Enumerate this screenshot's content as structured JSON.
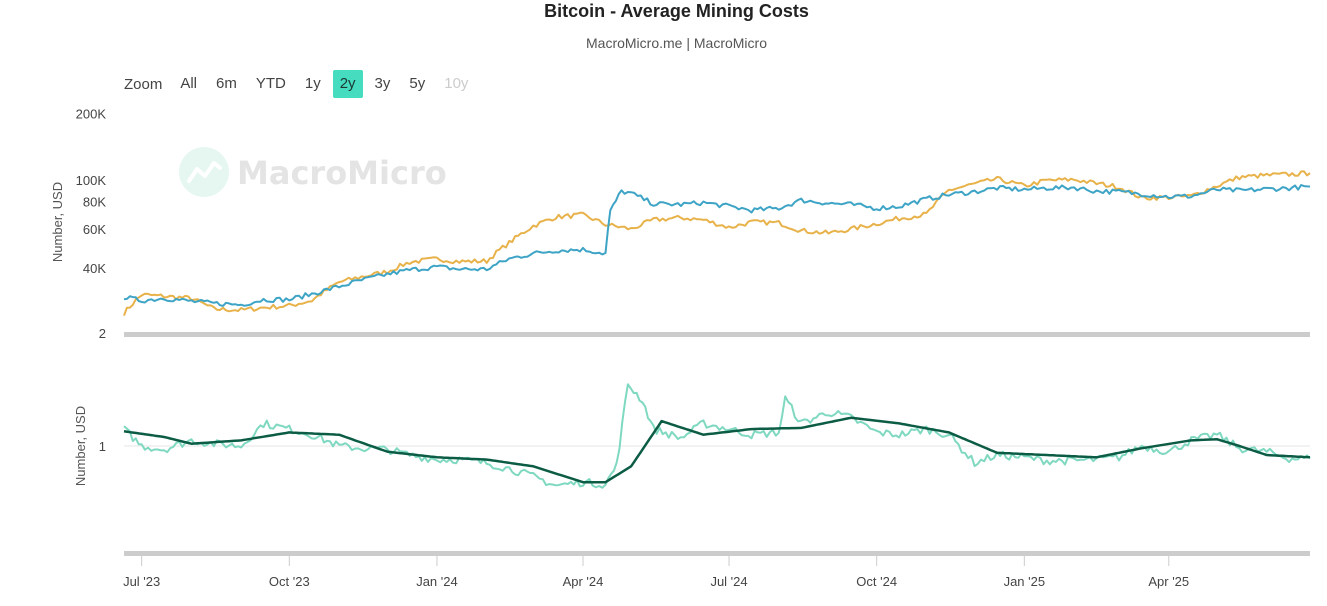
{
  "title": "Bitcoin - Average Mining Costs",
  "subtitle": "MacroMicro.me | MacroMicro",
  "zoom": {
    "label": "Zoom",
    "buttons": [
      "All",
      "6m",
      "YTD",
      "1y",
      "2y",
      "3y",
      "5y",
      "10y"
    ],
    "active": "2y",
    "disabled": [
      "10y"
    ]
  },
  "watermark": {
    "text": "MacroMicro",
    "icon": "chart-logo-icon"
  },
  "colors": {
    "price": "#e8b24a",
    "cost": "#3ea4c6",
    "ratio": "#7fd8c0",
    "ratio_avg": "#0c5c45",
    "grid": "#e6e6e6",
    "navigator": "#cccccc",
    "zoom_active": "#45dcc0"
  },
  "chart_data": [
    {
      "type": "line",
      "scale": "log",
      "ylabel": "Number, USD",
      "y_ticks": [
        "200K",
        "100K",
        "80K",
        "60K",
        "40K"
      ],
      "ylim": [
        18000,
        200000
      ],
      "series": [
        {
          "color": "#e8b24a",
          "x": [
            "2023-06-20",
            "2023-07-01",
            "2023-07-15",
            "2023-08-01",
            "2023-08-15",
            "2023-09-01",
            "2023-09-15",
            "2023-10-01",
            "2023-10-15",
            "2023-11-01",
            "2023-11-15",
            "2023-12-01",
            "2023-12-15",
            "2024-01-01",
            "2024-01-15",
            "2024-02-01",
            "2024-02-15",
            "2024-03-01",
            "2024-03-15",
            "2024-04-01",
            "2024-04-15",
            "2024-05-01",
            "2024-05-15",
            "2024-06-01",
            "2024-06-15",
            "2024-07-01",
            "2024-07-15",
            "2024-08-01",
            "2024-08-15",
            "2024-09-01",
            "2024-09-15",
            "2024-10-01",
            "2024-10-15",
            "2024-11-01",
            "2024-11-15",
            "2024-12-01",
            "2024-12-15",
            "2025-01-01",
            "2025-01-15",
            "2025-02-01",
            "2025-02-15",
            "2025-03-01",
            "2025-03-15",
            "2025-04-01",
            "2025-04-15",
            "2025-05-01",
            "2025-05-15",
            "2025-06-01",
            "2025-06-15",
            "2025-06-28"
          ],
          "y": [
            25000,
            30300,
            29800,
            29200,
            26100,
            25800,
            26500,
            27000,
            28500,
            34500,
            36500,
            38500,
            42500,
            44000,
            42800,
            43000,
            52000,
            62000,
            68000,
            69500,
            63000,
            60000,
            66000,
            67500,
            66000,
            61000,
            64500,
            64000,
            59000,
            57500,
            60000,
            63500,
            67000,
            70000,
            90000,
            96000,
            101000,
            94000,
            99500,
            100500,
            96500,
            93000,
            83000,
            83500,
            84500,
            94000,
            103000,
            105000,
            106000,
            107500
          ]
        },
        {
          "color": "#3ea4c6",
          "x": [
            "2023-06-20",
            "2023-07-01",
            "2023-07-15",
            "2023-08-01",
            "2023-08-15",
            "2023-09-01",
            "2023-09-15",
            "2023-10-01",
            "2023-10-15",
            "2023-11-01",
            "2023-11-15",
            "2023-12-01",
            "2023-12-15",
            "2024-01-01",
            "2024-01-15",
            "2024-02-01",
            "2024-02-15",
            "2024-03-01",
            "2024-03-15",
            "2024-04-01",
            "2024-04-15",
            "2024-04-18",
            "2024-04-25",
            "2024-05-01",
            "2024-05-15",
            "2024-06-01",
            "2024-06-15",
            "2024-07-01",
            "2024-07-15",
            "2024-08-01",
            "2024-08-15",
            "2024-09-01",
            "2024-09-15",
            "2024-10-01",
            "2024-10-15",
            "2024-11-01",
            "2024-11-15",
            "2024-12-01",
            "2024-12-15",
            "2025-01-01",
            "2025-01-15",
            "2025-02-01",
            "2025-02-15",
            "2025-03-01",
            "2025-03-15",
            "2025-04-01",
            "2025-04-15",
            "2025-05-01",
            "2025-05-15",
            "2025-06-01",
            "2025-06-15",
            "2025-06-28"
          ],
          "y": [
            29500,
            28500,
            29200,
            28300,
            27700,
            27300,
            28800,
            28800,
            30500,
            33000,
            35200,
            37500,
            39200,
            40500,
            39500,
            39500,
            44000,
            46500,
            48000,
            48500,
            46500,
            72000,
            89000,
            87000,
            78000,
            77500,
            79000,
            76000,
            73000,
            74500,
            81000,
            78500,
            77500,
            74500,
            76000,
            82000,
            86000,
            88500,
            92000,
            90500,
            92000,
            92500,
            89000,
            88500,
            86500,
            84000,
            84500,
            90500,
            89500,
            91000,
            92000,
            93500
          ]
        }
      ]
    },
    {
      "type": "line",
      "ylabel": "Number, USD",
      "y_ticks": [
        "2",
        "1"
      ],
      "ylim": [
        0.2,
        2.0
      ],
      "series": [
        {
          "color": "#7fd8c0",
          "x": [
            "2023-06-20",
            "2023-07-01",
            "2023-07-15",
            "2023-08-01",
            "2023-08-15",
            "2023-09-01",
            "2023-09-15",
            "2023-10-01",
            "2023-10-15",
            "2023-11-01",
            "2023-11-15",
            "2023-12-01",
            "2023-12-15",
            "2024-01-01",
            "2024-01-15",
            "2024-02-01",
            "2024-02-15",
            "2024-03-01",
            "2024-03-15",
            "2024-04-01",
            "2024-04-15",
            "2024-04-22",
            "2024-04-29",
            "2024-05-08",
            "2024-05-15",
            "2024-06-01",
            "2024-06-15",
            "2024-07-01",
            "2024-07-15",
            "2024-08-01",
            "2024-08-05",
            "2024-08-15",
            "2024-09-01",
            "2024-09-15",
            "2024-10-01",
            "2024-10-15",
            "2024-11-01",
            "2024-11-15",
            "2024-12-01",
            "2024-12-15",
            "2025-01-01",
            "2025-01-15",
            "2025-02-01",
            "2025-02-15",
            "2025-03-01",
            "2025-03-15",
            "2025-04-01",
            "2025-04-15",
            "2025-05-01",
            "2025-05-15",
            "2025-06-01",
            "2025-06-15",
            "2025-06-28"
          ],
          "y": [
            1.15,
            1.0,
            0.97,
            1.05,
            1.02,
            1.0,
            1.2,
            1.15,
            1.1,
            1.0,
            0.98,
            0.97,
            0.92,
            0.88,
            0.88,
            0.85,
            0.8,
            0.73,
            0.65,
            0.68,
            0.66,
            0.83,
            1.55,
            1.4,
            1.15,
            1.07,
            1.2,
            1.15,
            1.1,
            1.12,
            1.42,
            1.2,
            1.3,
            1.25,
            1.12,
            1.1,
            1.15,
            1.1,
            0.85,
            0.92,
            0.9,
            0.87,
            0.87,
            0.88,
            0.9,
            1.0,
            0.95,
            1.05,
            1.1,
            0.98,
            0.95,
            0.89,
            0.89
          ]
        },
        {
          "color": "#0c5c45",
          "x": [
            "2023-06-20",
            "2023-07-15",
            "2023-08-01",
            "2023-09-01",
            "2023-10-01",
            "2023-11-01",
            "2023-12-01",
            "2024-01-01",
            "2024-02-01",
            "2024-03-01",
            "2024-04-01",
            "2024-04-15",
            "2024-05-01",
            "2024-05-20",
            "2024-06-15",
            "2024-07-15",
            "2024-08-15",
            "2024-09-15",
            "2024-10-15",
            "2024-11-15",
            "2024-12-15",
            "2025-01-15",
            "2025-02-15",
            "2025-03-15",
            "2025-04-15",
            "2025-05-01",
            "2025-05-15",
            "2025-06-01",
            "2025-06-28"
          ],
          "y": [
            1.13,
            1.08,
            1.02,
            1.05,
            1.12,
            1.1,
            0.95,
            0.9,
            0.88,
            0.82,
            0.68,
            0.68,
            0.82,
            1.22,
            1.1,
            1.15,
            1.16,
            1.25,
            1.2,
            1.12,
            0.94,
            0.92,
            0.9,
            0.98,
            1.05,
            1.06,
            1.0,
            0.92,
            0.9
          ]
        }
      ]
    }
  ],
  "x_axis": {
    "ticks": [
      {
        "date": "2023-07-01",
        "label": "Jul '23"
      },
      {
        "date": "2023-10-01",
        "label": "Oct '23"
      },
      {
        "date": "2024-01-01",
        "label": "Jan '24"
      },
      {
        "date": "2024-04-01",
        "label": "Apr '24"
      },
      {
        "date": "2024-07-01",
        "label": "Jul '24"
      },
      {
        "date": "2024-10-01",
        "label": "Oct '24"
      },
      {
        "date": "2025-01-01",
        "label": "Jan '25"
      },
      {
        "date": "2025-04-01",
        "label": "Apr '25"
      }
    ],
    "range": [
      "2023-06-20",
      "2025-06-28"
    ]
  }
}
